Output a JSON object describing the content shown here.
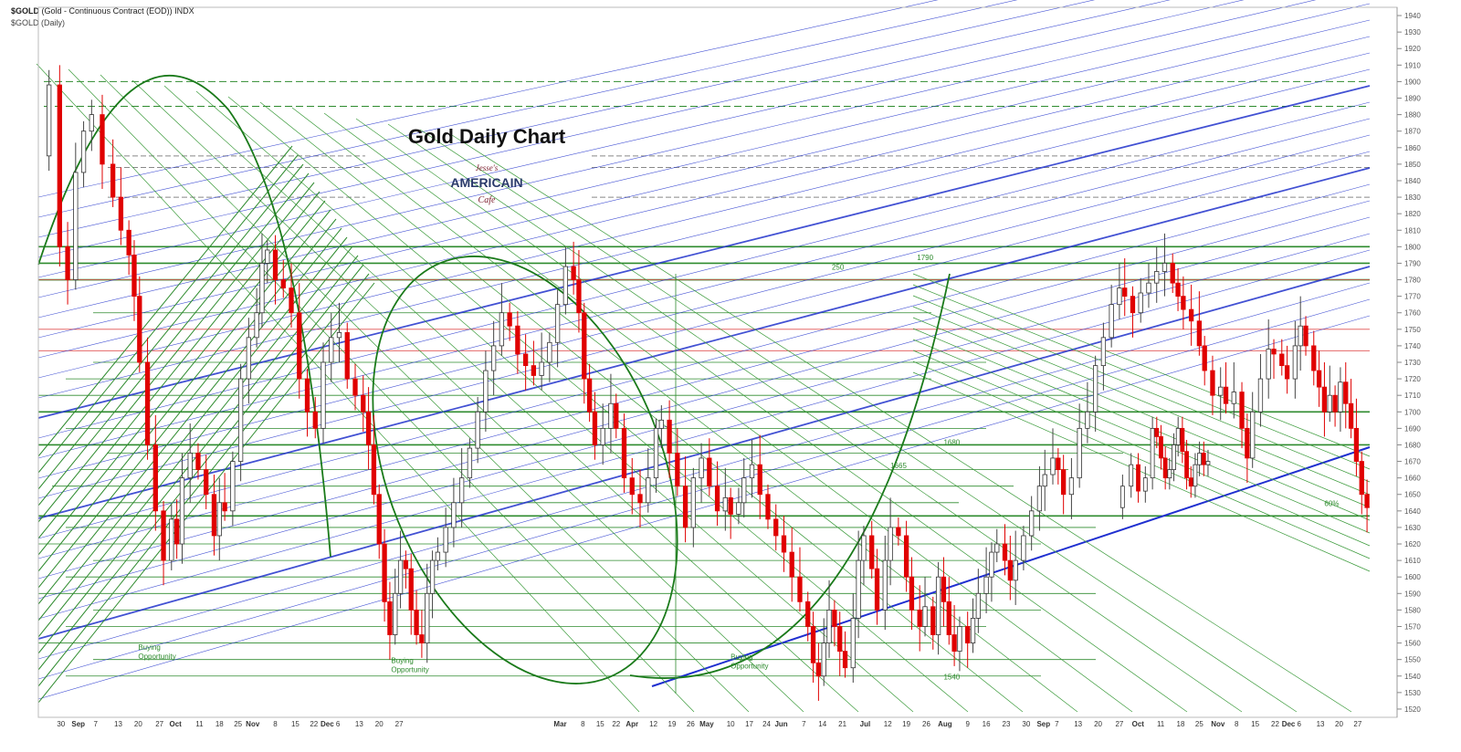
{
  "header": {
    "symbol": "$GOLD",
    "description": "(Gold - Continuous Contract (EOD)) INDX",
    "period": "$GOLD (Daily)"
  },
  "logo_text": {
    "line1": "Jesse's",
    "line2": "AMERICAIN",
    "line3": "Cafe"
  },
  "chart_data": {
    "type": "candlestick",
    "title": "Gold Daily Chart",
    "ylim": [
      1515,
      1945
    ],
    "y_ticks": [
      1520,
      1530,
      1540,
      1550,
      1560,
      1570,
      1580,
      1590,
      1600,
      1610,
      1620,
      1630,
      1640,
      1650,
      1660,
      1670,
      1680,
      1690,
      1700,
      1710,
      1720,
      1730,
      1740,
      1750,
      1760,
      1770,
      1780,
      1790,
      1800,
      1810,
      1820,
      1830,
      1840,
      1850,
      1860,
      1870,
      1880,
      1890,
      1900,
      1910,
      1920,
      1930,
      1940
    ],
    "x_ticks": [
      {
        "label": "30",
        "pos": 0.017
      },
      {
        "label": "Sep",
        "pos": 0.03
      },
      {
        "label": "7",
        "pos": 0.043
      },
      {
        "label": "13",
        "pos": 0.06
      },
      {
        "label": "20",
        "pos": 0.075
      },
      {
        "label": "27",
        "pos": 0.091
      },
      {
        "label": "Oct",
        "pos": 0.103
      },
      {
        "label": "11",
        "pos": 0.121
      },
      {
        "label": "18",
        "pos": 0.136
      },
      {
        "label": "25",
        "pos": 0.15
      },
      {
        "label": "Nov",
        "pos": 0.161
      },
      {
        "label": "8",
        "pos": 0.178
      },
      {
        "label": "15",
        "pos": 0.193
      },
      {
        "label": "22",
        "pos": 0.207
      },
      {
        "label": "Dec",
        "pos": 0.217
      },
      {
        "label": "6",
        "pos": 0.225
      },
      {
        "label": "13",
        "pos": 0.241
      },
      {
        "label": "20",
        "pos": 0.256
      },
      {
        "label": "27",
        "pos": 0.271
      },
      {
        "label": "Mar",
        "pos": 0.392
      },
      {
        "label": "8",
        "pos": 0.409
      },
      {
        "label": "15",
        "pos": 0.422
      },
      {
        "label": "22",
        "pos": 0.434
      },
      {
        "label": "Apr",
        "pos": 0.446
      },
      {
        "label": "12",
        "pos": 0.462
      },
      {
        "label": "19",
        "pos": 0.476
      },
      {
        "label": "26",
        "pos": 0.49
      },
      {
        "label": "May",
        "pos": 0.502
      },
      {
        "label": "10",
        "pos": 0.52
      },
      {
        "label": "17",
        "pos": 0.534
      },
      {
        "label": "24",
        "pos": 0.547
      },
      {
        "label": "Jun",
        "pos": 0.558
      },
      {
        "label": "7",
        "pos": 0.575
      },
      {
        "label": "14",
        "pos": 0.589
      },
      {
        "label": "21",
        "pos": 0.604
      },
      {
        "label": "Jul",
        "pos": 0.621
      },
      {
        "label": "12",
        "pos": 0.638
      },
      {
        "label": "19",
        "pos": 0.652
      },
      {
        "label": "26",
        "pos": 0.667
      },
      {
        "label": "Aug",
        "pos": 0.681
      },
      {
        "label": "9",
        "pos": 0.698
      },
      {
        "label": "16",
        "pos": 0.712
      },
      {
        "label": "23",
        "pos": 0.727
      },
      {
        "label": "30",
        "pos": 0.742
      },
      {
        "label": "Sep",
        "pos": 0.755
      },
      {
        "label": "7",
        "pos": 0.765
      },
      {
        "label": "13",
        "pos": 0.781
      },
      {
        "label": "20",
        "pos": 0.796
      },
      {
        "label": "27",
        "pos": 0.812
      },
      {
        "label": "Oct",
        "pos": 0.826
      },
      {
        "label": "11",
        "pos": 0.843
      },
      {
        "label": "18",
        "pos": 0.858
      },
      {
        "label": "25",
        "pos": 0.872
      },
      {
        "label": "Nov",
        "pos": 0.886
      },
      {
        "label": "8",
        "pos": 0.9
      },
      {
        "label": "15",
        "pos": 0.914
      },
      {
        "label": "22",
        "pos": 0.929
      },
      {
        "label": "Dec",
        "pos": 0.939
      },
      {
        "label": "6",
        "pos": 0.947
      },
      {
        "label": "13",
        "pos": 0.963
      },
      {
        "label": "20",
        "pos": 0.977
      },
      {
        "label": "27",
        "pos": 0.991
      }
    ],
    "price_path": [
      [
        0.0,
        1855
      ],
      [
        0.008,
        1898
      ],
      [
        0.016,
        1800
      ],
      [
        0.022,
        1780
      ],
      [
        0.028,
        1845
      ],
      [
        0.034,
        1870
      ],
      [
        0.04,
        1880
      ],
      [
        0.048,
        1850
      ],
      [
        0.056,
        1830
      ],
      [
        0.062,
        1810
      ],
      [
        0.068,
        1795
      ],
      [
        0.072,
        1770
      ],
      [
        0.076,
        1730
      ],
      [
        0.082,
        1680
      ],
      [
        0.088,
        1640
      ],
      [
        0.094,
        1610
      ],
      [
        0.1,
        1635
      ],
      [
        0.104,
        1620
      ],
      [
        0.108,
        1660
      ],
      [
        0.114,
        1675
      ],
      [
        0.12,
        1665
      ],
      [
        0.126,
        1650
      ],
      [
        0.132,
        1625
      ],
      [
        0.136,
        1645
      ],
      [
        0.14,
        1640
      ],
      [
        0.146,
        1670
      ],
      [
        0.152,
        1720
      ],
      [
        0.158,
        1745
      ],
      [
        0.164,
        1760
      ],
      [
        0.168,
        1790
      ],
      [
        0.172,
        1798
      ],
      [
        0.178,
        1780
      ],
      [
        0.184,
        1775
      ],
      [
        0.19,
        1760
      ],
      [
        0.196,
        1720
      ],
      [
        0.202,
        1700
      ],
      [
        0.208,
        1690
      ],
      [
        0.214,
        1730
      ],
      [
        0.22,
        1745
      ],
      [
        0.226,
        1748
      ],
      [
        0.232,
        1720
      ],
      [
        0.238,
        1710
      ],
      [
        0.244,
        1700
      ],
      [
        0.248,
        1680
      ],
      [
        0.252,
        1650
      ],
      [
        0.256,
        1620
      ],
      [
        0.26,
        1585
      ],
      [
        0.264,
        1565
      ],
      [
        0.268,
        1590
      ],
      [
        0.272,
        1610
      ],
      [
        0.276,
        1605
      ],
      [
        0.28,
        1580
      ],
      [
        0.284,
        1565
      ],
      [
        0.288,
        1560
      ],
      [
        0.292,
        1590
      ],
      [
        0.296,
        1610
      ],
      [
        0.3,
        1615
      ],
      [
        0.306,
        1630
      ],
      [
        0.312,
        1645
      ],
      [
        0.318,
        1660
      ],
      [
        0.324,
        1678
      ],
      [
        0.33,
        1700
      ],
      [
        0.336,
        1725
      ],
      [
        0.342,
        1740
      ],
      [
        0.348,
        1760
      ],
      [
        0.354,
        1752
      ],
      [
        0.36,
        1735
      ],
      [
        0.366,
        1728
      ],
      [
        0.372,
        1722
      ],
      [
        0.378,
        1730
      ],
      [
        0.384,
        1742
      ],
      [
        0.39,
        1765
      ],
      [
        0.396,
        1788
      ],
      [
        0.402,
        1780
      ],
      [
        0.406,
        1760
      ],
      [
        0.41,
        1720
      ],
      [
        0.414,
        1700
      ],
      [
        0.418,
        1680
      ],
      [
        0.424,
        1690
      ],
      [
        0.43,
        1705
      ],
      [
        0.434,
        1690
      ],
      [
        0.44,
        1660
      ],
      [
        0.446,
        1650
      ],
      [
        0.452,
        1645
      ],
      [
        0.458,
        1660
      ],
      [
        0.464,
        1690
      ],
      [
        0.468,
        1695
      ],
      [
        0.474,
        1675
      ],
      [
        0.48,
        1655
      ],
      [
        0.486,
        1630
      ],
      [
        0.492,
        1660
      ],
      [
        0.498,
        1672
      ],
      [
        0.504,
        1655
      ],
      [
        0.51,
        1640
      ],
      [
        0.516,
        1648
      ],
      [
        0.52,
        1638
      ],
      [
        0.526,
        1645
      ],
      [
        0.53,
        1660
      ],
      [
        0.536,
        1668
      ],
      [
        0.542,
        1650
      ],
      [
        0.548,
        1635
      ],
      [
        0.554,
        1625
      ],
      [
        0.56,
        1615
      ],
      [
        0.566,
        1600
      ],
      [
        0.572,
        1585
      ],
      [
        0.578,
        1570
      ],
      [
        0.582,
        1548
      ],
      [
        0.586,
        1540
      ],
      [
        0.59,
        1560
      ],
      [
        0.594,
        1580
      ],
      [
        0.598,
        1570
      ],
      [
        0.602,
        1555
      ],
      [
        0.606,
        1545
      ],
      [
        0.612,
        1575
      ],
      [
        0.616,
        1610
      ],
      [
        0.62,
        1625
      ],
      [
        0.626,
        1605
      ],
      [
        0.63,
        1580
      ],
      [
        0.636,
        1610
      ],
      [
        0.64,
        1630
      ],
      [
        0.646,
        1625
      ],
      [
        0.652,
        1600
      ],
      [
        0.656,
        1580
      ],
      [
        0.662,
        1570
      ],
      [
        0.666,
        1582
      ],
      [
        0.672,
        1565
      ],
      [
        0.676,
        1600
      ],
      [
        0.68,
        1585
      ],
      [
        0.684,
        1565
      ],
      [
        0.688,
        1555
      ],
      [
        0.692,
        1570
      ],
      [
        0.698,
        1560
      ],
      [
        0.702,
        1575
      ],
      [
        0.706,
        1590
      ],
      [
        0.712,
        1600
      ],
      [
        0.716,
        1615
      ],
      [
        0.72,
        1620
      ],
      [
        0.726,
        1610
      ],
      [
        0.73,
        1598
      ],
      [
        0.734,
        1610
      ],
      [
        0.74,
        1625
      ],
      [
        0.746,
        1640
      ],
      [
        0.752,
        1655
      ],
      [
        0.756,
        1662
      ],
      [
        0.762,
        1672
      ],
      [
        0.766,
        1665
      ],
      [
        0.77,
        1650
      ],
      [
        0.776,
        1660
      ],
      [
        0.782,
        1690
      ],
      [
        0.788,
        1700
      ],
      [
        0.794,
        1728
      ],
      [
        0.8,
        1745
      ],
      [
        0.806,
        1765
      ],
      [
        0.812,
        1775
      ],
      [
        0.816,
        1770
      ],
      [
        0.822,
        1760
      ],
      [
        0.828,
        1772
      ],
      [
        0.834,
        1778
      ],
      [
        0.84,
        1785
      ],
      [
        0.846,
        1790
      ],
      [
        0.852,
        1778
      ],
      [
        0.856,
        1770
      ],
      [
        0.86,
        1762
      ],
      [
        0.866,
        1755
      ],
      [
        0.872,
        1740
      ],
      [
        0.876,
        1725
      ],
      [
        0.882,
        1710
      ],
      [
        0.888,
        1715
      ],
      [
        0.892,
        1705
      ],
      [
        0.898,
        1712
      ],
      [
        0.904,
        1690
      ],
      [
        0.908,
        1672
      ],
      [
        0.912,
        1700
      ],
      [
        0.918,
        1720
      ],
      [
        0.924,
        1738
      ],
      [
        0.928,
        1735
      ],
      [
        0.934,
        1728
      ],
      [
        0.938,
        1720
      ],
      [
        0.944,
        1740
      ],
      [
        0.948,
        1752
      ],
      [
        0.952,
        1740
      ],
      [
        0.958,
        1725
      ],
      [
        0.962,
        1715
      ],
      [
        0.966,
        1700
      ],
      [
        0.97,
        1710
      ],
      [
        0.974,
        1700
      ],
      [
        0.978,
        1718
      ],
      [
        0.982,
        1705
      ],
      [
        0.986,
        1690
      ],
      [
        0.99,
        1670
      ],
      [
        0.994,
        1650
      ],
      [
        0.998,
        1642
      ]
    ],
    "overlay_extra_path": [
      [
        0.0,
        1642
      ],
      [
        0.012,
        1655
      ],
      [
        0.024,
        1668
      ],
      [
        0.034,
        1652
      ],
      [
        0.044,
        1660
      ],
      [
        0.054,
        1690
      ],
      [
        0.06,
        1685
      ],
      [
        0.066,
        1672
      ],
      [
        0.072,
        1660
      ],
      [
        0.078,
        1665
      ],
      [
        0.084,
        1680
      ],
      [
        0.09,
        1690
      ],
      [
        0.096,
        1676
      ],
      [
        0.102,
        1660
      ],
      [
        0.108,
        1655
      ],
      [
        0.114,
        1668
      ],
      [
        0.12,
        1675
      ],
      [
        0.126,
        1668
      ],
      [
        0.132,
        1670
      ]
    ],
    "annotations": [
      {
        "text": "Buying Opportunity",
        "x": 0.075,
        "y": 1556
      },
      {
        "text": "Buying Opportunity",
        "x": 0.265,
        "y": 1548
      },
      {
        "text": "Buying Opportunity",
        "x": 0.52,
        "y": 1550
      },
      {
        "text": "250",
        "x": 0.596,
        "y": 1786
      },
      {
        "text": "1790",
        "x": 0.66,
        "y": 1792
      },
      {
        "text": "1680",
        "x": 0.68,
        "y": 1680
      },
      {
        "text": "1665",
        "x": 0.64,
        "y": 1666
      },
      {
        "text": "1540",
        "x": 0.68,
        "y": 1538
      },
      {
        "text": "60%",
        "x": 0.966,
        "y": 1643
      }
    ],
    "grid": false,
    "legend": "none"
  }
}
